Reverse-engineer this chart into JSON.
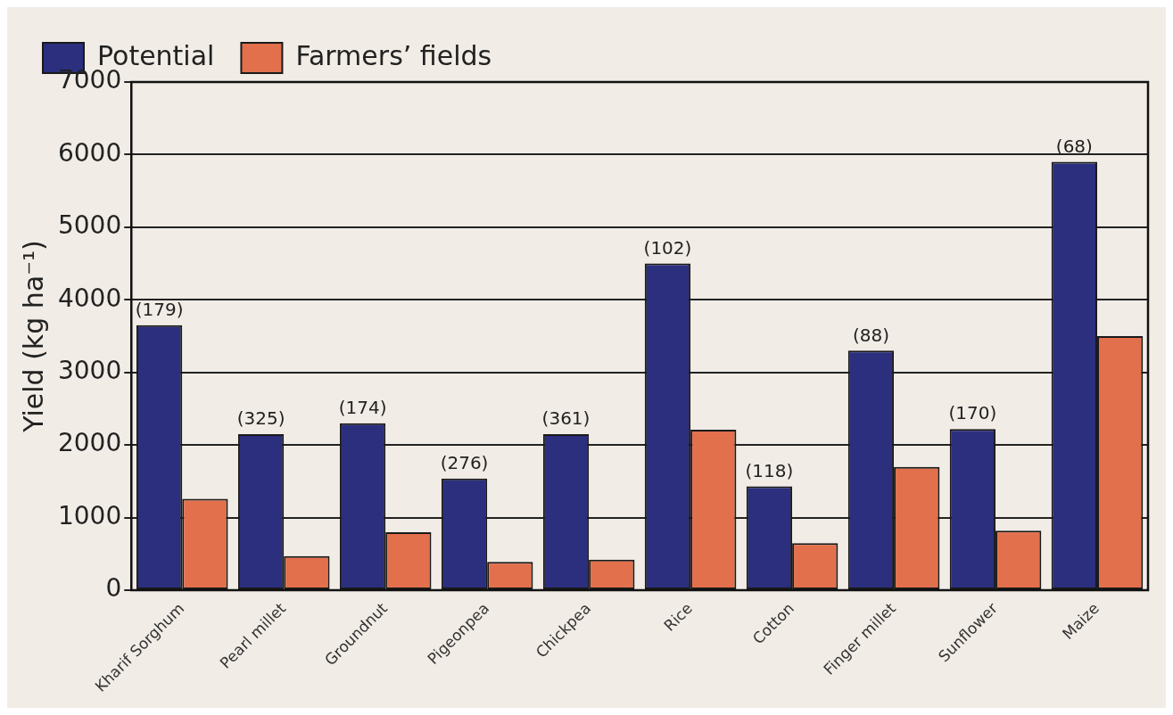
{
  "chart_data": {
    "type": "bar",
    "ylabel": "Yield (kg ha⁻¹)",
    "categories": [
      "Kharif Sorghum",
      "Pearl millet",
      "Groundnut",
      "Pigeonpea",
      "Chickpea",
      "Rice",
      "Cotton",
      "Finger millet",
      "Sunflower",
      "Maize"
    ],
    "series": [
      {
        "name": "Potential",
        "color": "#2b2f7e",
        "values": [
          3650,
          2150,
          2300,
          1540,
          2150,
          4500,
          1430,
          3300,
          2220,
          5900
        ]
      },
      {
        "name": "Farmers’ fields",
        "color": "#e2704c",
        "values": [
          1260,
          470,
          800,
          390,
          420,
          2210,
          650,
          1700,
          820,
          3500
        ]
      }
    ],
    "ylim": [
      0,
      7000
    ],
    "yticks": [
      0,
      1000,
      2000,
      3000,
      4000,
      5000,
      6000,
      7000
    ],
    "grid": "y",
    "legend": "top left",
    "annotations": [
      {
        "text": "(179)",
        "x": "Kharif Sorghum",
        "y": 3650
      },
      {
        "text": "(325)",
        "x": "Pearl millet",
        "y": 2150
      },
      {
        "text": "(174)",
        "x": "Groundnut",
        "y": 2300
      },
      {
        "text": "(276)",
        "x": "Pigeonpea",
        "y": 1540
      },
      {
        "text": "(361)",
        "x": "Chickpea",
        "y": 2150
      },
      {
        "text": "(102)",
        "x": "Rice",
        "y": 4500
      },
      {
        "text": "(118)",
        "x": "Cotton",
        "y": 1430
      },
      {
        "text": "(88)",
        "x": "Finger millet",
        "y": 3300
      },
      {
        "text": "(170)",
        "x": "Sunflower",
        "y": 2220
      },
      {
        "text": "(68)",
        "x": "Maize",
        "y": 5900
      }
    ]
  }
}
